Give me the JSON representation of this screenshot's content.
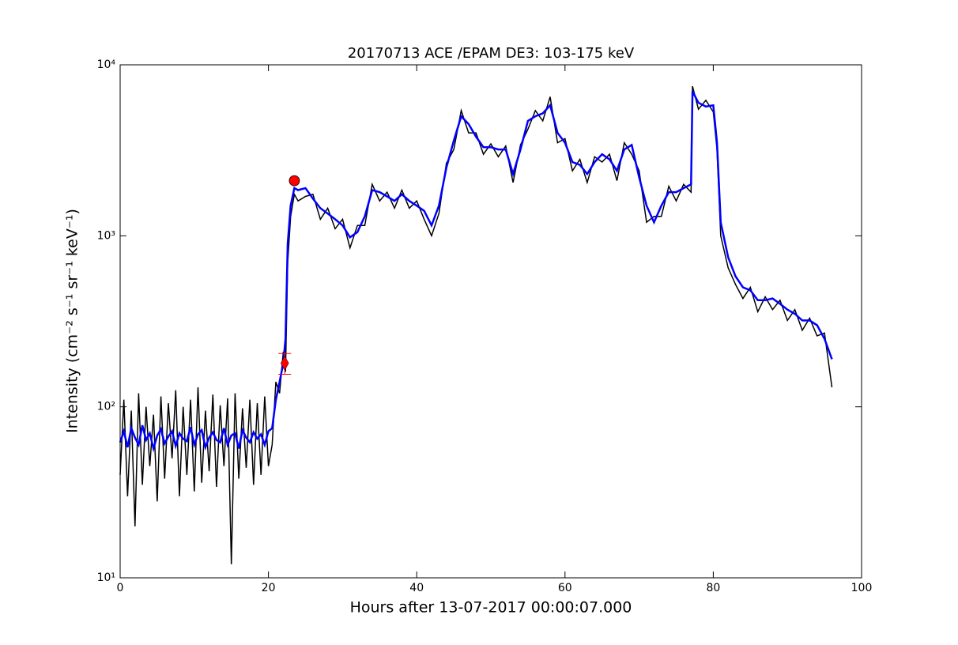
{
  "chart_data": {
    "type": "line",
    "title": "20170713 ACE /EPAM DE3: 103-175 keV",
    "x_label": "Hours after 13-07-2017 00:00:07.000",
    "y_label": "Intensity (cm⁻² s⁻¹ sr⁻¹ keV⁻¹)",
    "log_y": true,
    "xlim": [
      0,
      100
    ],
    "xticks": [
      0,
      20,
      40,
      60,
      80,
      100
    ],
    "ylim": [
      10,
      10000
    ],
    "yticks": [
      {
        "value": 10,
        "label": "10¹"
      },
      {
        "value": 100,
        "label": "10²"
      },
      {
        "value": 1000,
        "label": "10³"
      },
      {
        "value": 10000,
        "label": "10⁴"
      }
    ],
    "x": [
      0,
      0.5,
      1,
      1.5,
      2,
      2.5,
      3,
      3.5,
      4,
      4.5,
      5,
      5.5,
      6,
      6.5,
      7,
      7.5,
      8,
      8.5,
      9,
      9.5,
      10,
      10.5,
      11,
      11.5,
      12,
      12.5,
      13,
      13.5,
      14,
      14.5,
      15,
      15.5,
      16,
      16.5,
      17,
      17.5,
      18,
      18.5,
      19,
      19.5,
      20,
      20.5,
      21,
      21.5,
      22,
      22.3,
      22.6,
      23,
      23.5,
      24,
      25,
      26,
      27,
      28,
      29,
      30,
      31,
      32,
      33,
      34,
      35,
      36,
      37,
      38,
      39,
      40,
      41,
      42,
      43,
      44,
      45,
      46,
      47,
      48,
      49,
      50,
      51,
      52,
      53,
      54,
      55,
      56,
      57,
      58,
      59,
      60,
      61,
      62,
      63,
      64,
      65,
      66,
      67,
      68,
      69,
      70,
      71,
      72,
      73,
      74,
      75,
      76,
      77,
      77.2,
      78,
      79,
      80,
      80.5,
      81,
      82,
      83,
      84,
      85,
      86,
      87,
      88,
      89,
      90,
      91,
      92,
      93,
      94,
      95,
      96
    ],
    "series": [
      {
        "color": "#000000",
        "values": [
          40,
          110,
          30,
          95,
          20,
          120,
          35,
          100,
          45,
          90,
          28,
          115,
          38,
          105,
          50,
          125,
          30,
          100,
          40,
          110,
          32,
          130,
          36,
          95,
          42,
          118,
          34,
          102,
          45,
          112,
          12,
          120,
          38,
          98,
          44,
          110,
          35,
          105,
          40,
          115,
          45,
          60,
          140,
          120,
          210,
          160,
          700,
          1300,
          1750,
          1600,
          1700,
          1750,
          1250,
          1450,
          1100,
          1250,
          850,
          1150,
          1150,
          2000,
          1600,
          1800,
          1450,
          1850,
          1450,
          1600,
          1250,
          1000,
          1350,
          2650,
          3200,
          5400,
          4000,
          4000,
          3000,
          3450,
          2900,
          3350,
          2050,
          3400,
          4200,
          5400,
          4700,
          6500,
          3500,
          3700,
          2400,
          2800,
          2050,
          2900,
          2700,
          3000,
          2100,
          3500,
          3000,
          2400,
          1200,
          1300,
          1300,
          1950,
          1600,
          2000,
          1800,
          7500,
          5500,
          6200,
          5300,
          3200,
          1000,
          650,
          520,
          430,
          500,
          360,
          440,
          370,
          420,
          320,
          370,
          280,
          330,
          260,
          270,
          130
        ]
      },
      {
        "color": "#0000ff",
        "values": [
          62,
          72,
          58,
          75,
          66,
          60,
          78,
          64,
          70,
          57,
          68,
          74,
          61,
          67,
          72,
          59,
          70,
          65,
          63,
          76,
          60,
          69,
          73,
          58,
          66,
          71,
          64,
          62,
          75,
          60,
          68,
          70,
          57,
          73,
          66,
          62,
          71,
          65,
          69,
          60,
          72,
          75,
          110,
          140,
          180,
          250,
          900,
          1500,
          1900,
          1850,
          1900,
          1650,
          1450,
          1350,
          1250,
          1150,
          980,
          1050,
          1300,
          1850,
          1800,
          1700,
          1600,
          1750,
          1600,
          1500,
          1400,
          1150,
          1500,
          2500,
          3600,
          5000,
          4500,
          3800,
          3300,
          3300,
          3200,
          3200,
          2300,
          3200,
          4700,
          5000,
          5200,
          5800,
          4000,
          3500,
          2700,
          2600,
          2300,
          2700,
          3000,
          2800,
          2400,
          3200,
          3400,
          2200,
          1500,
          1200,
          1500,
          1800,
          1800,
          1900,
          2000,
          7000,
          6000,
          5700,
          5800,
          3500,
          1200,
          750,
          580,
          500,
          480,
          420,
          420,
          430,
          400,
          370,
          350,
          320,
          320,
          300,
          250,
          190
        ]
      }
    ],
    "markers": [
      {
        "x": 22.2,
        "y": 180,
        "yerr": 25,
        "shape": "diamond",
        "color": "#ff0000"
      },
      {
        "x": 23.5,
        "y": 2100,
        "shape": "circle",
        "color": "#ff0000"
      }
    ]
  }
}
